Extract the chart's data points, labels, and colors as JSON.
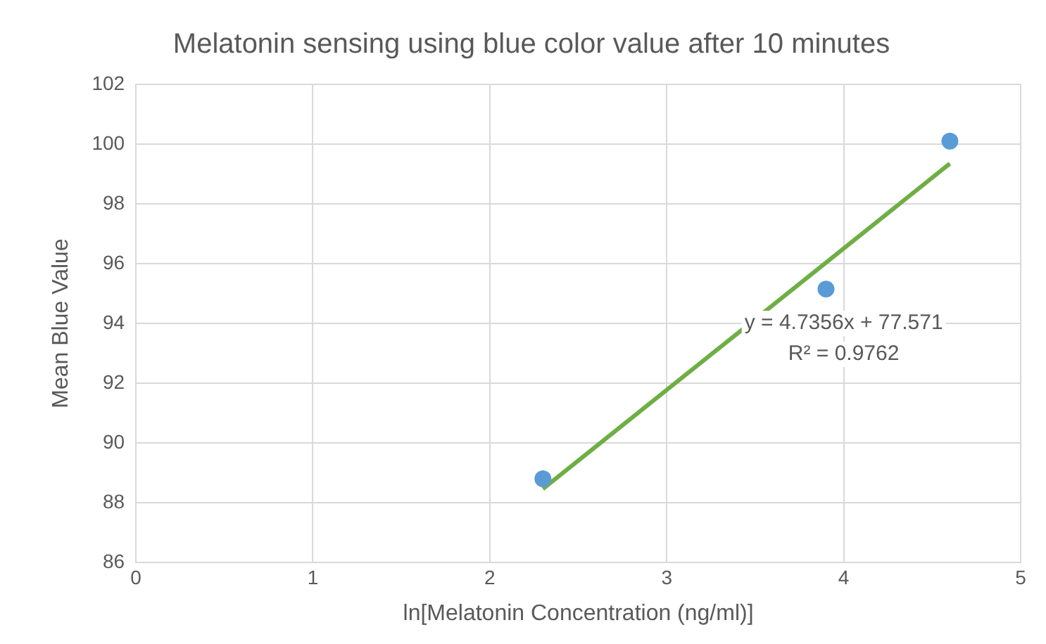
{
  "chart_data": {
    "type": "scatter",
    "title": "Melatonin sensing using blue color value after 10 minutes",
    "xlabel": "ln[Melatonin Concentration (ng/ml)]",
    "ylabel": "Mean Blue Value",
    "series": [
      {
        "color": "#5b9bd5",
        "x": [
          2.3,
          3.9,
          4.6
        ],
        "values": [
          88.8,
          95.15,
          100.1
        ],
        "marker": "circle"
      },
      {
        "type": "line",
        "color": "#70ad47",
        "x": [
          2.3,
          4.6
        ],
        "values": [
          88.46,
          99.35
        ],
        "marker": "none"
      }
    ],
    "annotations": [
      "y = 4.7356x + 77.571",
      "R² = 0.9762"
    ],
    "xlim": [
      0,
      5
    ],
    "xticks": [
      0,
      1,
      2,
      3,
      4,
      5
    ],
    "ylim": [
      86,
      102
    ],
    "yticks": [
      86,
      88,
      90,
      92,
      94,
      96,
      98,
      100,
      102
    ],
    "grid": true,
    "legend": false
  }
}
